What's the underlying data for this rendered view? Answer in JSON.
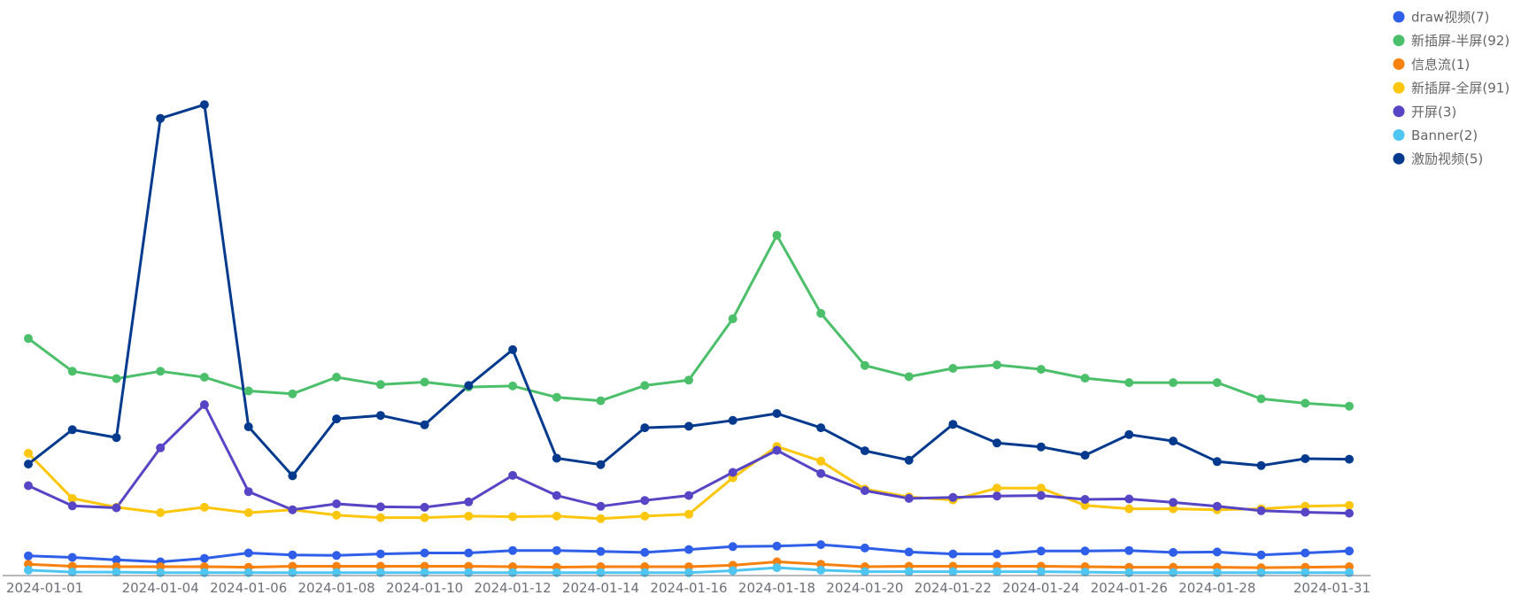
{
  "chart_data": {
    "type": "line",
    "title": "",
    "xlabel": "",
    "ylabel": "",
    "ylim": [
      0,
      110
    ],
    "grid": false,
    "legend_position": "top-right",
    "x": [
      "2024-01-01",
      "2024-01-02",
      "2024-01-03",
      "2024-01-04",
      "2024-01-05",
      "2024-01-06",
      "2024-01-07",
      "2024-01-08",
      "2024-01-09",
      "2024-01-10",
      "2024-01-11",
      "2024-01-12",
      "2024-01-13",
      "2024-01-14",
      "2024-01-15",
      "2024-01-16",
      "2024-01-17",
      "2024-01-18",
      "2024-01-19",
      "2024-01-20",
      "2024-01-21",
      "2024-01-22",
      "2024-01-23",
      "2024-01-24",
      "2024-01-25",
      "2024-01-26",
      "2024-01-27",
      "2024-01-28",
      "2024-01-29",
      "2024-01-30",
      "2024-01-31"
    ],
    "x_tick_labels": [
      "2024-01-01",
      "2024-01-04",
      "2024-01-06",
      "2024-01-08",
      "2024-01-10",
      "2024-01-12",
      "2024-01-14",
      "2024-01-16",
      "2024-01-18",
      "2024-01-20",
      "2024-01-22",
      "2024-01-24",
      "2024-01-26",
      "2024-01-28",
      "2024-01-31"
    ],
    "series": [
      {
        "name": "draw视频(7)",
        "color": "#2f5fe8",
        "values": [
          4.0,
          3.7,
          3.2,
          2.8,
          3.5,
          4.6,
          4.2,
          4.1,
          4.4,
          4.6,
          4.6,
          5.1,
          5.1,
          4.9,
          4.7,
          5.3,
          5.9,
          6.0,
          6.3,
          5.6,
          4.8,
          4.4,
          4.4,
          5.0,
          5.0,
          5.1,
          4.7,
          4.8,
          4.2,
          4.6,
          5.0
        ]
      },
      {
        "name": "新插屏-半屏(92)",
        "color": "#4cbf6b",
        "values": [
          48.3,
          41.6,
          40.1,
          41.6,
          40.4,
          37.6,
          37.0,
          40.4,
          38.9,
          39.4,
          38.4,
          38.6,
          36.3,
          35.6,
          38.7,
          39.8,
          52.3,
          69.3,
          53.4,
          42.8,
          40.5,
          42.2,
          42.9,
          42.0,
          40.2,
          39.3,
          39.3,
          39.3,
          36.0,
          35.1,
          34.5
        ]
      },
      {
        "name": "信息流(1)",
        "color": "#f7810f",
        "values": [
          2.3,
          1.9,
          1.8,
          1.8,
          1.8,
          1.7,
          1.9,
          1.9,
          1.9,
          1.9,
          1.9,
          1.8,
          1.7,
          1.8,
          1.8,
          1.8,
          2.1,
          2.8,
          2.3,
          1.8,
          1.9,
          1.9,
          1.9,
          1.9,
          1.8,
          1.7,
          1.7,
          1.7,
          1.6,
          1.7,
          1.8
        ]
      },
      {
        "name": "新插屏-全屏(91)",
        "color": "#fcc60c",
        "values": [
          24.9,
          15.7,
          13.9,
          12.8,
          13.9,
          12.8,
          13.4,
          12.3,
          11.8,
          11.8,
          12.1,
          12.0,
          12.1,
          11.6,
          12.1,
          12.5,
          19.9,
          26.3,
          23.3,
          17.6,
          16.0,
          15.4,
          17.8,
          17.8,
          14.3,
          13.6,
          13.6,
          13.4,
          13.6,
          14.1,
          14.3
        ]
      },
      {
        "name": "开屏(3)",
        "color": "#5646c6",
        "values": [
          18.3,
          14.2,
          13.8,
          26.0,
          34.8,
          17.1,
          13.4,
          14.6,
          14.0,
          13.9,
          15.0,
          20.4,
          16.3,
          14.1,
          15.3,
          16.3,
          21.0,
          25.5,
          20.8,
          17.3,
          15.7,
          15.9,
          16.2,
          16.3,
          15.5,
          15.6,
          14.9,
          14.1,
          13.2,
          12.9,
          12.7
        ]
      },
      {
        "name": "Banner(2)",
        "color": "#4fc6f2",
        "values": [
          1.1,
          0.7,
          0.7,
          0.6,
          0.6,
          0.6,
          0.6,
          0.6,
          0.6,
          0.6,
          0.6,
          0.6,
          0.6,
          0.6,
          0.6,
          0.6,
          1.0,
          1.6,
          1.1,
          0.8,
          0.8,
          0.8,
          0.8,
          0.8,
          0.7,
          0.6,
          0.6,
          0.6,
          0.6,
          0.6,
          0.6
        ]
      },
      {
        "name": "激励视频(5)",
        "color": "#033a8e",
        "values": [
          22.7,
          29.7,
          28.1,
          93.1,
          95.9,
          30.3,
          20.3,
          31.9,
          32.6,
          30.7,
          38.7,
          46.0,
          23.9,
          22.6,
          30.1,
          30.4,
          31.6,
          33.0,
          30.1,
          25.4,
          23.5,
          30.8,
          27.0,
          26.2,
          24.5,
          28.7,
          27.4,
          23.2,
          22.4,
          23.8,
          23.7
        ]
      }
    ]
  }
}
